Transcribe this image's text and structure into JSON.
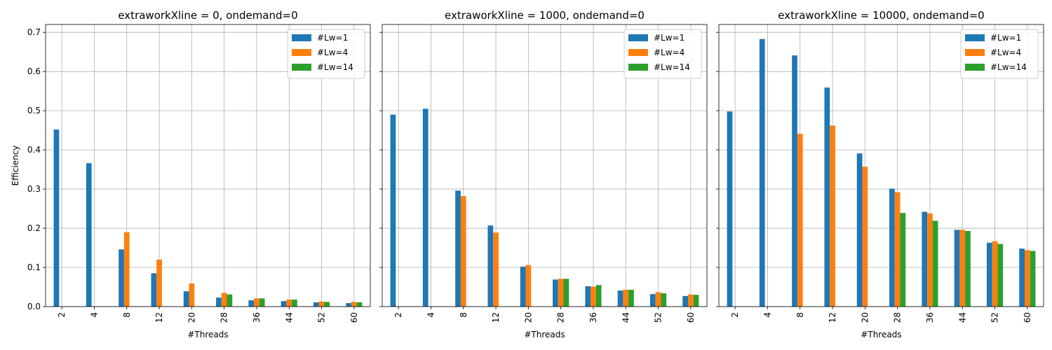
{
  "chart_data": [
    {
      "type": "bar",
      "title": "extraworkXline = 0, ondemand=0",
      "xlabel": "#Threads",
      "ylabel": "Efficiency",
      "categories": [
        "2",
        "4",
        "8",
        "12",
        "20",
        "28",
        "36",
        "44",
        "52",
        "60"
      ],
      "ylim": [
        0,
        0.72
      ],
      "yticks": [
        "0.0",
        "0.1",
        "0.2",
        "0.3",
        "0.4",
        "0.5",
        "0.6",
        "0.7"
      ],
      "grid": true,
      "legend_position": "top-right",
      "series": [
        {
          "name": "#Lw=1",
          "color": "#1f77b4",
          "values": [
            0.452,
            0.366,
            0.146,
            0.085,
            0.039,
            0.023,
            0.016,
            0.014,
            0.011,
            0.009
          ]
        },
        {
          "name": "#Lw=4",
          "color": "#ff7f0e",
          "values": [
            null,
            null,
            0.19,
            0.12,
            0.059,
            0.035,
            0.021,
            0.018,
            0.013,
            0.012
          ]
        },
        {
          "name": "#Lw=14",
          "color": "#2ca02c",
          "values": [
            null,
            null,
            null,
            null,
            null,
            0.031,
            0.021,
            0.018,
            0.012,
            0.011
          ]
        }
      ]
    },
    {
      "type": "bar",
      "title": "extraworkXline = 1000, ondemand=0",
      "xlabel": "#Threads",
      "ylabel": "",
      "categories": [
        "2",
        "4",
        "8",
        "12",
        "20",
        "28",
        "36",
        "44",
        "52",
        "60"
      ],
      "ylim": [
        0,
        0.72
      ],
      "yticks": [
        "0.0",
        "0.1",
        "0.2",
        "0.3",
        "0.4",
        "0.5",
        "0.6",
        "0.7"
      ],
      "grid": true,
      "legend_position": "top-right",
      "series": [
        {
          "name": "#Lw=1",
          "color": "#1f77b4",
          "values": [
            0.49,
            0.505,
            0.296,
            0.207,
            0.102,
            0.069,
            0.052,
            0.041,
            0.032,
            0.027
          ]
        },
        {
          "name": "#Lw=4",
          "color": "#ff7f0e",
          "values": [
            null,
            null,
            0.282,
            0.189,
            0.106,
            0.071,
            0.051,
            0.043,
            0.037,
            0.031
          ]
        },
        {
          "name": "#Lw=14",
          "color": "#2ca02c",
          "values": [
            null,
            null,
            null,
            null,
            null,
            0.071,
            0.055,
            0.043,
            0.034,
            0.03
          ]
        }
      ]
    },
    {
      "type": "bar",
      "title": "extraworkXline = 10000, ondemand=0",
      "xlabel": "#Threads",
      "ylabel": "",
      "categories": [
        "2",
        "4",
        "8",
        "12",
        "20",
        "28",
        "36",
        "44",
        "52",
        "60"
      ],
      "ylim": [
        0,
        0.72
      ],
      "yticks": [
        "0.0",
        "0.1",
        "0.2",
        "0.3",
        "0.4",
        "0.5",
        "0.6",
        "0.7"
      ],
      "grid": true,
      "legend_position": "top-right",
      "series": [
        {
          "name": "#Lw=1",
          "color": "#1f77b4",
          "values": [
            0.498,
            0.683,
            0.641,
            0.559,
            0.391,
            0.301,
            0.242,
            0.196,
            0.163,
            0.148
          ]
        },
        {
          "name": "#Lw=4",
          "color": "#ff7f0e",
          "values": [
            null,
            null,
            0.441,
            0.462,
            0.357,
            0.292,
            0.238,
            0.196,
            0.167,
            0.144
          ]
        },
        {
          "name": "#Lw=14",
          "color": "#2ca02c",
          "values": [
            null,
            null,
            null,
            null,
            null,
            0.239,
            0.219,
            0.193,
            0.16,
            0.142
          ]
        }
      ]
    }
  ]
}
